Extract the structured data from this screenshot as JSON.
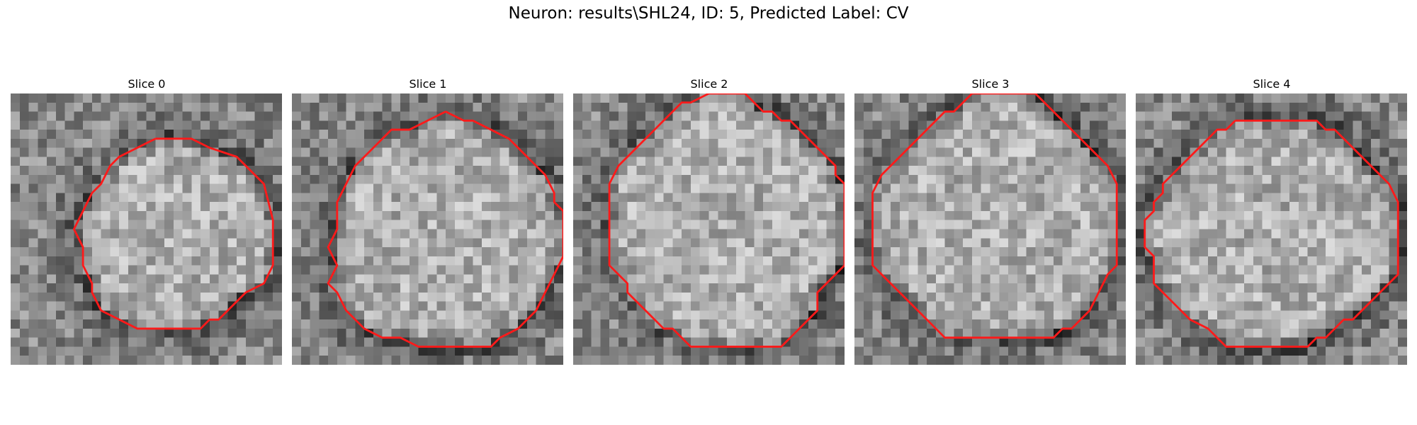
{
  "figure": {
    "suptitle": "Neuron: results\\SHL24, ID: 5, Predicted Label: CV",
    "contour_color": "#ff1a1a",
    "grid_size": 30
  },
  "slices": [
    {
      "title": "Slice 0",
      "contour": [
        [
          16,
          5
        ],
        [
          20,
          5
        ],
        [
          22,
          6
        ],
        [
          25,
          7
        ],
        [
          28,
          10
        ],
        [
          29,
          14
        ],
        [
          29,
          19
        ],
        [
          28,
          21
        ],
        [
          26,
          22
        ],
        [
          24,
          24
        ],
        [
          23,
          25
        ],
        [
          22,
          25
        ],
        [
          21,
          26
        ],
        [
          14,
          26
        ],
        [
          12,
          25
        ],
        [
          10,
          24
        ],
        [
          9,
          22
        ],
        [
          9,
          21
        ],
        [
          8,
          19
        ],
        [
          8,
          17
        ],
        [
          7,
          15
        ],
        [
          8,
          13
        ],
        [
          9,
          11
        ],
        [
          10,
          10
        ],
        [
          11,
          8
        ],
        [
          12,
          7
        ],
        [
          14,
          6
        ],
        [
          16,
          5
        ]
      ]
    },
    {
      "title": "Slice 1",
      "contour": [
        [
          17,
          2
        ],
        [
          19,
          3
        ],
        [
          20,
          3
        ],
        [
          22,
          4
        ],
        [
          24,
          5
        ],
        [
          25,
          6
        ],
        [
          26,
          7
        ],
        [
          28,
          9
        ],
        [
          29,
          11
        ],
        [
          29,
          12
        ],
        [
          30,
          13
        ],
        [
          30,
          18
        ],
        [
          29,
          20
        ],
        [
          28,
          22
        ],
        [
          27,
          24
        ],
        [
          25,
          26
        ],
        [
          23,
          27
        ],
        [
          22,
          28
        ],
        [
          14,
          28
        ],
        [
          12,
          27
        ],
        [
          10,
          27
        ],
        [
          8,
          26
        ],
        [
          6,
          24
        ],
        [
          5,
          22
        ],
        [
          4,
          21
        ],
        [
          5,
          19
        ],
        [
          4,
          17
        ],
        [
          5,
          15
        ],
        [
          5,
          12
        ],
        [
          6,
          10
        ],
        [
          7,
          8
        ],
        [
          8,
          7
        ],
        [
          10,
          5
        ],
        [
          11,
          4
        ],
        [
          13,
          4
        ],
        [
          15,
          3
        ],
        [
          17,
          2
        ]
      ]
    },
    {
      "title": "Slice 2",
      "contour": [
        [
          15,
          0
        ],
        [
          19,
          0
        ],
        [
          20,
          1
        ],
        [
          21,
          2
        ],
        [
          22,
          2
        ],
        [
          23,
          3
        ],
        [
          24,
          3
        ],
        [
          25,
          4
        ],
        [
          26,
          5
        ],
        [
          27,
          6
        ],
        [
          28,
          7
        ],
        [
          29,
          8
        ],
        [
          29,
          9
        ],
        [
          30,
          10
        ],
        [
          30,
          19
        ],
        [
          29,
          20
        ],
        [
          28,
          21
        ],
        [
          27,
          22
        ],
        [
          27,
          24
        ],
        [
          26,
          25
        ],
        [
          25,
          26
        ],
        [
          24,
          27
        ],
        [
          23,
          28
        ],
        [
          16,
          28
        ],
        [
          14,
          28
        ],
        [
          13,
          28
        ],
        [
          12,
          27
        ],
        [
          11,
          26
        ],
        [
          10,
          26
        ],
        [
          9,
          25
        ],
        [
          8,
          24
        ],
        [
          7,
          23
        ],
        [
          6,
          22
        ],
        [
          6,
          21
        ],
        [
          5,
          20
        ],
        [
          4,
          19
        ],
        [
          4,
          12
        ],
        [
          4,
          10
        ],
        [
          5,
          8
        ],
        [
          6,
          7
        ],
        [
          7,
          6
        ],
        [
          8,
          5
        ],
        [
          9,
          4
        ],
        [
          10,
          3
        ],
        [
          11,
          2
        ],
        [
          12,
          1
        ],
        [
          13,
          1
        ],
        [
          15,
          0
        ]
      ]
    },
    {
      "title": "Slice 3",
      "contour": [
        [
          13,
          0
        ],
        [
          20,
          0
        ],
        [
          21,
          1
        ],
        [
          22,
          2
        ],
        [
          23,
          3
        ],
        [
          24,
          4
        ],
        [
          25,
          5
        ],
        [
          26,
          6
        ],
        [
          27,
          7
        ],
        [
          28,
          8
        ],
        [
          29,
          10
        ],
        [
          29,
          19
        ],
        [
          28,
          20
        ],
        [
          27,
          22
        ],
        [
          26,
          24
        ],
        [
          25,
          25
        ],
        [
          24,
          26
        ],
        [
          23,
          26
        ],
        [
          22,
          27
        ],
        [
          10,
          27
        ],
        [
          9,
          26
        ],
        [
          8,
          25
        ],
        [
          7,
          24
        ],
        [
          6,
          23
        ],
        [
          5,
          22
        ],
        [
          3,
          20
        ],
        [
          2,
          19
        ],
        [
          2,
          11
        ],
        [
          3,
          9
        ],
        [
          4,
          8
        ],
        [
          5,
          7
        ],
        [
          6,
          6
        ],
        [
          7,
          5
        ],
        [
          8,
          4
        ],
        [
          9,
          3
        ],
        [
          10,
          2
        ],
        [
          11,
          2
        ],
        [
          12,
          1
        ],
        [
          13,
          0
        ]
      ]
    },
    {
      "title": "Slice 4",
      "contour": [
        [
          11,
          3
        ],
        [
          15,
          3
        ],
        [
          18,
          3
        ],
        [
          20,
          3
        ],
        [
          21,
          4
        ],
        [
          22,
          4
        ],
        [
          23,
          5
        ],
        [
          24,
          6
        ],
        [
          25,
          7
        ],
        [
          26,
          8
        ],
        [
          27,
          9
        ],
        [
          28,
          10
        ],
        [
          29,
          12
        ],
        [
          29,
          20
        ],
        [
          28,
          21
        ],
        [
          27,
          22
        ],
        [
          26,
          23
        ],
        [
          25,
          24
        ],
        [
          24,
          25
        ],
        [
          23,
          25
        ],
        [
          22,
          26
        ],
        [
          21,
          27
        ],
        [
          20,
          27
        ],
        [
          19,
          28
        ],
        [
          10,
          28
        ],
        [
          9,
          27
        ],
        [
          8,
          26
        ],
        [
          6,
          25
        ],
        [
          5,
          24
        ],
        [
          4,
          23
        ],
        [
          3,
          22
        ],
        [
          2,
          21
        ],
        [
          2,
          18
        ],
        [
          1,
          17
        ],
        [
          1,
          14
        ],
        [
          2,
          13
        ],
        [
          2,
          12
        ],
        [
          3,
          11
        ],
        [
          3,
          10
        ],
        [
          4,
          9
        ],
        [
          5,
          8
        ],
        [
          6,
          7
        ],
        [
          7,
          6
        ],
        [
          8,
          5
        ],
        [
          9,
          4
        ],
        [
          10,
          4
        ],
        [
          11,
          3
        ]
      ]
    }
  ]
}
